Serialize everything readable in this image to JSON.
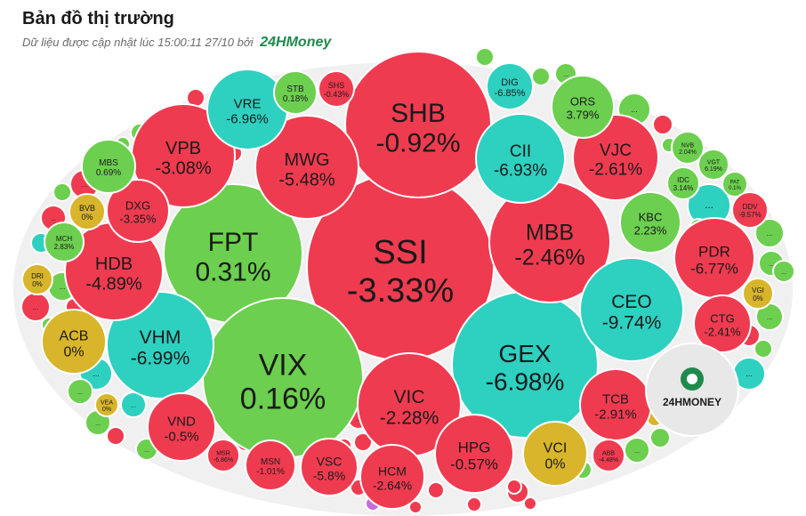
{
  "header": {
    "title": "Bản đồ thị trường",
    "updated_text": "Dữ liệu được cập nhật lúc 15:00:11 27/10 bởi",
    "brand": "24HMoney"
  },
  "colors": {
    "down": "#ef3b50",
    "up": "#6ccf4f",
    "floor": "#2ed0c0",
    "ref": "#d8b52a",
    "logo_bg": "#e8e8e8",
    "other": "#c86cd8"
  },
  "chart_data": {
    "type": "bubble-treemap",
    "title": "Bản đồ thị trường",
    "logo_text": "24HMONEY",
    "more_label": "...",
    "items": [
      {
        "ticker": "SSI",
        "change": "-3.33%",
        "value": -3.33,
        "status": "down"
      },
      {
        "ticker": "FPT",
        "change": "0.31%",
        "value": 0.31,
        "status": "up"
      },
      {
        "ticker": "VIX",
        "change": "0.16%",
        "value": 0.16,
        "status": "up"
      },
      {
        "ticker": "GEX",
        "change": "-6.98%",
        "value": -6.98,
        "status": "floor"
      },
      {
        "ticker": "SHB",
        "change": "-0.92%",
        "value": -0.92,
        "status": "down"
      },
      {
        "ticker": "MBB",
        "change": "-2.46%",
        "value": -2.46,
        "status": "down"
      },
      {
        "ticker": "CEO",
        "change": "-9.74%",
        "value": -9.74,
        "status": "floor"
      },
      {
        "ticker": "VIC",
        "change": "-2.28%",
        "value": -2.28,
        "status": "down"
      },
      {
        "ticker": "VHM",
        "change": "-6.99%",
        "value": -6.99,
        "status": "floor"
      },
      {
        "ticker": "HDB",
        "change": "-4.89%",
        "value": -4.89,
        "status": "down"
      },
      {
        "ticker": "VPB",
        "change": "-3.08%",
        "value": -3.08,
        "status": "down"
      },
      {
        "ticker": "MWG",
        "change": "-5.48%",
        "value": -5.48,
        "status": "down"
      },
      {
        "ticker": "CII",
        "change": "-6.93%",
        "value": -6.93,
        "status": "floor"
      },
      {
        "ticker": "VJC",
        "change": "-2.61%",
        "value": -2.61,
        "status": "down"
      },
      {
        "ticker": "PDR",
        "change": "-6.77%",
        "value": -6.77,
        "status": "down"
      },
      {
        "ticker": "VRE",
        "change": "-6.96%",
        "value": -6.96,
        "status": "floor"
      },
      {
        "ticker": "ACB",
        "change": "0%",
        "value": 0,
        "status": "ref"
      },
      {
        "ticker": "VND",
        "change": "-0.5%",
        "value": -0.5,
        "status": "down"
      },
      {
        "ticker": "HPG",
        "change": "-0.57%",
        "value": -0.57,
        "status": "down"
      },
      {
        "ticker": "VCI",
        "change": "0%",
        "value": 0,
        "status": "ref"
      },
      {
        "ticker": "TCB",
        "change": "-2.91%",
        "value": -2.91,
        "status": "down"
      },
      {
        "ticker": "HCM",
        "change": "-2.64%",
        "value": -2.64,
        "status": "down"
      },
      {
        "ticker": "VSC",
        "change": "-5.8%",
        "value": -5.8,
        "status": "down"
      },
      {
        "ticker": "CTG",
        "change": "-2.41%",
        "value": -2.41,
        "status": "down"
      },
      {
        "ticker": "KBC",
        "change": "2.23%",
        "value": 2.23,
        "status": "up"
      },
      {
        "ticker": "DXG",
        "change": "-3.35%",
        "value": -3.35,
        "status": "down"
      },
      {
        "ticker": "ORS",
        "change": "3.79%",
        "value": 3.79,
        "status": "up"
      },
      {
        "ticker": "DIG",
        "change": "-6.85%",
        "value": -6.85,
        "status": "floor"
      },
      {
        "ticker": "STB",
        "change": "0.18%",
        "value": 0.18,
        "status": "up"
      },
      {
        "ticker": "SHS",
        "change": "-0.43%",
        "value": -0.43,
        "status": "down"
      },
      {
        "ticker": "MBS",
        "change": "0.69%",
        "value": 0.69,
        "status": "up"
      },
      {
        "ticker": "BVB",
        "change": "0%",
        "value": 0,
        "status": "ref"
      },
      {
        "ticker": "MCH",
        "change": "2.83%",
        "value": 2.83,
        "status": "up"
      },
      {
        "ticker": "DRI",
        "change": "0%",
        "value": 0,
        "status": "ref"
      },
      {
        "ticker": "MSN",
        "change": "-1.01%",
        "value": -1.01,
        "status": "down"
      },
      {
        "ticker": "MSR",
        "change": "-6.86%",
        "value": -6.86,
        "status": "down"
      },
      {
        "ticker": "VEA",
        "change": "0%",
        "value": 0,
        "status": "ref"
      },
      {
        "ticker": "NVB",
        "change": "2.04%",
        "value": 2.04,
        "status": "up"
      },
      {
        "ticker": "VGT",
        "change": "6.19%",
        "value": 6.19,
        "status": "up"
      },
      {
        "ticker": "IDC",
        "change": "3.14%",
        "value": 3.14,
        "status": "up"
      },
      {
        "ticker": "PAT",
        "change": "0.1%",
        "value": 0.1,
        "status": "up"
      },
      {
        "ticker": "DDV",
        "change": "-9.57%",
        "value": -9.57,
        "status": "down"
      },
      {
        "ticker": "VGI",
        "change": "0%",
        "value": 0,
        "status": "ref"
      },
      {
        "ticker": "ABB",
        "change": "-4.48%",
        "value": -4.48,
        "status": "down"
      }
    ]
  }
}
